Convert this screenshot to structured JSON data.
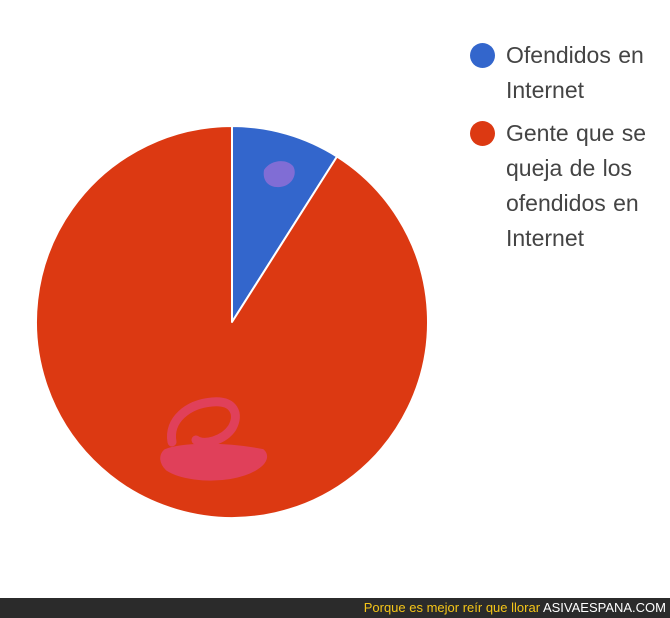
{
  "chart_data": {
    "type": "pie",
    "slices": [
      {
        "label": "Ofendidos en Internet",
        "value": 9,
        "color": "#3366cc"
      },
      {
        "label": "Gente que se queja de los ofendidos en Internet",
        "value": 91,
        "color": "#dc3912"
      }
    ],
    "legend_position": "top-right",
    "start_angle_deg": 0
  },
  "legend": {
    "items": [
      {
        "lines": [
          "Ofendidos en",
          "Internet"
        ],
        "color": "#3366cc"
      },
      {
        "lines": [
          "Gente que se",
          "queja de los",
          "ofendidos en",
          "Internet"
        ],
        "color": "#dc3912"
      }
    ]
  },
  "footer": {
    "slogan": "Porque es mejor reír que llorar",
    "brand": "ASIVAESPANA.COM"
  }
}
